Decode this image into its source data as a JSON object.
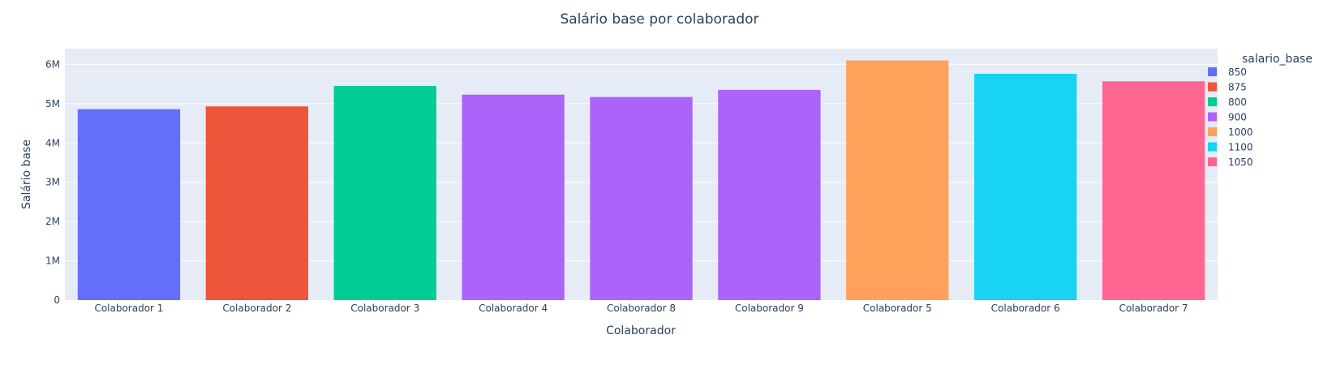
{
  "chart_data": {
    "type": "bar",
    "title": "Salário base por colaborador",
    "xlabel": "Colaborador",
    "ylabel": "Salário base",
    "ylim": [
      0,
      6400000
    ],
    "yticks": [
      {
        "value": 0,
        "label": "0"
      },
      {
        "value": 1000000,
        "label": "1M"
      },
      {
        "value": 2000000,
        "label": "2M"
      },
      {
        "value": 3000000,
        "label": "3M"
      },
      {
        "value": 4000000,
        "label": "4M"
      },
      {
        "value": 5000000,
        "label": "5M"
      },
      {
        "value": 6000000,
        "label": "6M"
      }
    ],
    "grid": true,
    "legend_placement": "right",
    "legend_title": "salario_base",
    "categories": [
      "Colaborador 1",
      "Colaborador 2",
      "Colaborador 3",
      "Colaborador 4",
      "Colaborador 8",
      "Colaborador 9",
      "Colaborador 5",
      "Colaborador 6",
      "Colaborador 7"
    ],
    "series": [
      {
        "name": "850",
        "color": "#636efa",
        "points": [
          {
            "x": "Colaborador 1",
            "y": 4860000
          }
        ]
      },
      {
        "name": "875",
        "color": "#ef553b",
        "points": [
          {
            "x": "Colaborador 2",
            "y": 4930000
          }
        ]
      },
      {
        "name": "800",
        "color": "#00cc96",
        "points": [
          {
            "x": "Colaborador 3",
            "y": 5450000
          }
        ]
      },
      {
        "name": "900",
        "color": "#ab63fa",
        "points": [
          {
            "x": "Colaborador 4",
            "y": 5230000
          },
          {
            "x": "Colaborador 8",
            "y": 5170000
          },
          {
            "x": "Colaborador 9",
            "y": 5350000
          }
        ]
      },
      {
        "name": "1000",
        "color": "#ffa15a",
        "points": [
          {
            "x": "Colaborador 5",
            "y": 6100000
          }
        ]
      },
      {
        "name": "1100",
        "color": "#19d3f3",
        "points": [
          {
            "x": "Colaborador 6",
            "y": 5760000
          }
        ]
      },
      {
        "name": "1050",
        "color": "#ff6692",
        "points": [
          {
            "x": "Colaborador 7",
            "y": 5570000
          }
        ]
      }
    ]
  },
  "colors": {
    "plot_background": "#e5ecf6",
    "gridline": "#ffffff",
    "text": "#2a3f5f"
  }
}
